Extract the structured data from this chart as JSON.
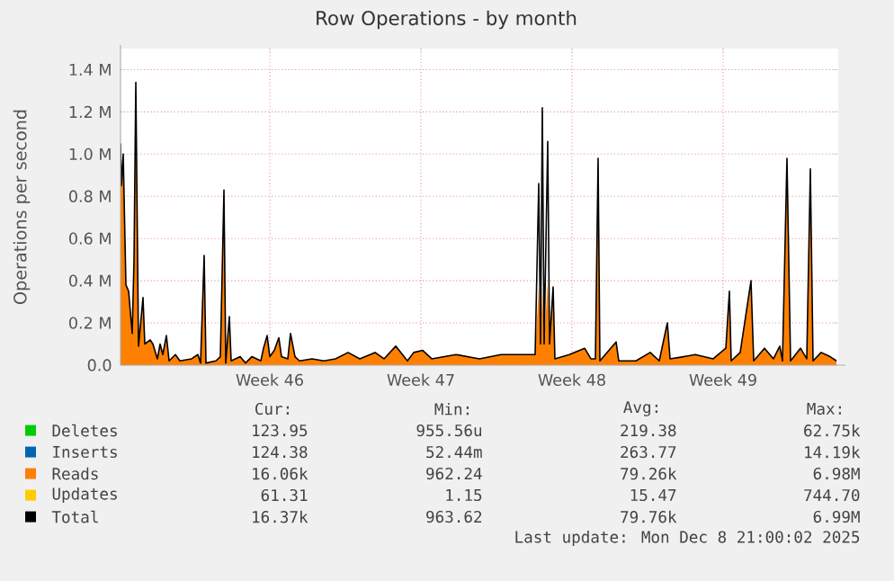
{
  "chart_data": {
    "type": "area",
    "title": "Row Operations - by month",
    "ylabel": "Operations per second",
    "x": [
      "2025-11-05T15:00",
      "2025-11-05T16:00",
      "2025-11-05T18:00",
      "2025-11-05T21:00",
      "2025-11-06T00:00",
      "2025-11-06T04:00",
      "2025-11-06T06:00",
      "2025-11-06T08:00",
      "2025-11-06T11:00",
      "2025-11-06T16:00",
      "2025-11-06T18:00",
      "2025-11-07T00:00",
      "2025-11-07T03:00",
      "2025-11-07T08:00",
      "2025-11-07T11:00",
      "2025-11-07T14:00",
      "2025-11-07T18:00",
      "2025-11-07T21:00",
      "2025-11-08T04:00",
      "2025-11-08T09:00",
      "2025-11-08T22:00",
      "2025-11-09T05:00",
      "2025-11-09T08:00",
      "2025-11-09T12:00",
      "2025-11-09T14:00",
      "2025-11-10T01:00",
      "2025-11-10T06:00",
      "2025-11-10T10:00",
      "2025-11-10T12:00",
      "2025-11-10T16:00",
      "2025-11-10T18:00",
      "2025-11-11T04:00",
      "2025-11-11T10:00",
      "2025-11-11T17:00",
      "2025-11-12T03:00",
      "2025-11-12T06:00",
      "2025-11-12T10:00",
      "2025-11-12T13:00",
      "2025-11-12T18:00",
      "2025-11-12T23:00",
      "2025-11-13T02:00",
      "2025-11-13T09:00",
      "2025-11-13T12:00",
      "2025-11-13T17:00",
      "2025-11-13T22:00",
      "2025-11-14T12:00",
      "2025-11-15T01:00",
      "2025-11-15T14:00",
      "2025-11-16T04:00",
      "2025-11-16T17:00",
      "2025-11-17T10:00",
      "2025-11-17T20:00",
      "2025-11-18T09:00",
      "2025-11-18T22:00",
      "2025-11-19T05:00",
      "2025-11-19T15:00",
      "2025-11-20T01:00",
      "2025-11-21T04:00",
      "2025-11-22T06:00",
      "2025-11-23T06:00",
      "2025-11-24T05:00",
      "2025-11-24T20:00",
      "2025-11-25T00:00",
      "2025-11-25T02:00",
      "2025-11-25T04:00",
      "2025-11-25T06:00",
      "2025-11-25T10:00",
      "2025-11-25T12:00",
      "2025-11-25T16:00",
      "2025-11-25T18:00",
      "2025-11-26T10:00",
      "2025-11-27T03:00",
      "2025-11-27T10:00",
      "2025-11-27T15:00",
      "2025-11-27T18:00",
      "2025-11-27T20:00",
      "2025-11-28T14:00",
      "2025-11-28T17:00",
      "2025-11-29T12:00",
      "2025-11-30T04:00",
      "2025-11-30T14:00",
      "2025-11-30T23:00",
      "2025-12-01T02:00",
      "2025-12-01T17:00",
      "2025-12-02T06:00",
      "2025-12-03T02:00",
      "2025-12-03T16:00",
      "2025-12-03T20:00",
      "2025-12-03T22:00",
      "2025-12-04T08:00",
      "2025-12-04T20:00",
      "2025-12-04T23:00",
      "2025-12-05T11:00",
      "2025-12-05T21:00",
      "2025-12-06T04:00",
      "2025-12-06T07:00",
      "2025-12-06T12:00",
      "2025-12-06T16:00",
      "2025-12-07T03:00",
      "2025-12-07T10:00",
      "2025-12-07T14:00",
      "2025-12-07T17:00",
      "2025-12-08T02:00",
      "2025-12-08T12:00",
      "2025-12-08T19:00"
    ],
    "xlim": [
      "2025-11-05T15:00",
      "2025-12-08T21:00"
    ],
    "xticks": [
      {
        "value": "2025-11-12T13:00",
        "label": "Week 46"
      },
      {
        "value": "2025-11-19T13:00",
        "label": "Week 47"
      },
      {
        "value": "2025-11-26T13:00",
        "label": "Week 48"
      },
      {
        "value": "2025-12-03T13:00",
        "label": "Week 49"
      }
    ],
    "ylim": [
      0,
      1500000
    ],
    "yticks": [
      {
        "value": 0,
        "label": "0.0"
      },
      {
        "value": 200000,
        "label": "0.2 M"
      },
      {
        "value": 400000,
        "label": "0.4 M"
      },
      {
        "value": 600000,
        "label": "0.6 M"
      },
      {
        "value": 800000,
        "label": "0.8 M"
      },
      {
        "value": 1000000,
        "label": "1.0 M"
      },
      {
        "value": 1200000,
        "label": "1.2 M"
      },
      {
        "value": 1400000,
        "label": "1.4 M"
      }
    ],
    "grid": true,
    "legend": "bottom",
    "marker": "none",
    "series": [
      {
        "name": "Deletes",
        "color": "#00cc00",
        "values": [
          null,
          null,
          null,
          null,
          null,
          null,
          null,
          null,
          null,
          null,
          null,
          null,
          null,
          null,
          null,
          null,
          null,
          null,
          null,
          null,
          null,
          null,
          null,
          null,
          null,
          null,
          null,
          null,
          null,
          null,
          null,
          null,
          null,
          null,
          null,
          null,
          null,
          null,
          null,
          null,
          null,
          null,
          null,
          null,
          null,
          null,
          null,
          null,
          null,
          null,
          null,
          null,
          null,
          null,
          null,
          null,
          null,
          null,
          null,
          null,
          null,
          null,
          null,
          null,
          null,
          null,
          null,
          null,
          null,
          null,
          null,
          null,
          null,
          null,
          null,
          null,
          null,
          null,
          null,
          null,
          null,
          null,
          null,
          null,
          null,
          null,
          null,
          null,
          null,
          null,
          null,
          null,
          null,
          null,
          null,
          null,
          null,
          null,
          null,
          null,
          null,
          null,
          null,
          null,
          null
        ]
      },
      {
        "name": "Inserts",
        "color": "#0066b3",
        "values": [
          null,
          null,
          null,
          null,
          null,
          null,
          null,
          null,
          null,
          null,
          null,
          null,
          null,
          null,
          null,
          null,
          null,
          null,
          null,
          null,
          null,
          null,
          null,
          null,
          null,
          null,
          null,
          null,
          null,
          null,
          null,
          null,
          null,
          null,
          null,
          null,
          null,
          null,
          null,
          null,
          null,
          null,
          null,
          null,
          null,
          null,
          null,
          null,
          null,
          null,
          null,
          null,
          null,
          null,
          null,
          null,
          null,
          null,
          null,
          null,
          null,
          null,
          null,
          null,
          null,
          null,
          null,
          null,
          null,
          null,
          null,
          null,
          null,
          null,
          null,
          null,
          null,
          null,
          null,
          null,
          null,
          null,
          null,
          null,
          null,
          null,
          null,
          null,
          null,
          null,
          null,
          null,
          null,
          null,
          null,
          null,
          null,
          null,
          null,
          null,
          null,
          null,
          null,
          null,
          null
        ]
      },
      {
        "name": "Reads",
        "color": "#ff8000",
        "values": [
          1050000.0,
          850000.0,
          1000000.0,
          380000.0,
          350000.0,
          150000.0,
          500000.0,
          1340000.0,
          90000.0,
          320000.0,
          100000.0,
          120000.0,
          100000.0,
          30000.0,
          100000.0,
          50000.0,
          140000.0,
          20000.0,
          50000.0,
          20000.0,
          30000.0,
          50000.0,
          10000.0,
          520000.0,
          10000.0,
          20000.0,
          40000.0,
          830000.0,
          10000.0,
          230000.0,
          20000.0,
          40000.0,
          10000.0,
          40000.0,
          20000.0,
          80000.0,
          140000.0,
          40000.0,
          70000.0,
          130000.0,
          40000.0,
          30000.0,
          150000.0,
          40000.0,
          20000.0,
          30000.0,
          20000.0,
          30000.0,
          60000.0,
          30000.0,
          60000.0,
          30000.0,
          90000.0,
          20000.0,
          60000.0,
          70000.0,
          30000.0,
          50000.0,
          30000.0,
          50000.0,
          50000.0,
          50000.0,
          370000.0,
          100000.0,
          370000.0,
          100000.0,
          400000.0,
          100000.0,
          370000.0,
          30000.0,
          50000.0,
          80000.0,
          30000.0,
          30000.0,
          980000.0,
          20000.0,
          110000.0,
          20000.0,
          20000.0,
          60000.0,
          20000.0,
          200000.0,
          30000.0,
          40000.0,
          50000.0,
          30000.0,
          80000.0,
          350000.0,
          20000.0,
          60000.0,
          400000.0,
          20000.0,
          80000.0,
          30000.0,
          90000.0,
          20000.0,
          980000.0,
          20000.0,
          80000.0,
          30000.0,
          930000.0,
          20000.0,
          60000.0,
          40000.0,
          20000.0
        ]
      },
      {
        "name": "Updates",
        "color": "#ffcc00",
        "values": [
          null,
          null,
          null,
          null,
          null,
          null,
          null,
          null,
          null,
          null,
          null,
          null,
          null,
          null,
          null,
          null,
          null,
          null,
          null,
          null,
          null,
          null,
          null,
          null,
          null,
          null,
          null,
          null,
          null,
          null,
          null,
          null,
          null,
          null,
          null,
          null,
          null,
          null,
          null,
          null,
          null,
          null,
          null,
          null,
          null,
          null,
          null,
          null,
          null,
          null,
          null,
          null,
          null,
          null,
          null,
          null,
          null,
          null,
          null,
          null,
          null,
          null,
          null,
          null,
          null,
          null,
          null,
          null,
          null,
          null,
          null,
          null,
          null,
          null,
          null,
          null,
          null,
          null,
          null,
          null,
          null,
          null,
          null,
          null,
          null,
          null,
          null,
          null,
          null,
          null,
          null,
          null,
          null,
          null,
          null,
          null,
          null,
          null,
          null,
          null,
          null,
          null,
          null,
          null,
          null
        ]
      },
      {
        "name": "Total",
        "color": "#000000",
        "type": "line",
        "values": [
          1050000.0,
          850000.0,
          1000000.0,
          380000.0,
          350000.0,
          150000.0,
          500000.0,
          1340000.0,
          90000.0,
          320000.0,
          100000.0,
          120000.0,
          100000.0,
          30000.0,
          100000.0,
          50000.0,
          140000.0,
          20000.0,
          50000.0,
          20000.0,
          30000.0,
          50000.0,
          10000.0,
          520000.0,
          10000.0,
          20000.0,
          40000.0,
          830000.0,
          10000.0,
          230000.0,
          20000.0,
          40000.0,
          10000.0,
          40000.0,
          20000.0,
          80000.0,
          140000.0,
          40000.0,
          70000.0,
          130000.0,
          40000.0,
          30000.0,
          150000.0,
          40000.0,
          20000.0,
          30000.0,
          20000.0,
          30000.0,
          60000.0,
          30000.0,
          60000.0,
          30000.0,
          90000.0,
          20000.0,
          60000.0,
          70000.0,
          30000.0,
          50000.0,
          30000.0,
          50000.0,
          50000.0,
          50000.0,
          860000.0,
          100000.0,
          1220000.0,
          100000.0,
          1060000.0,
          100000.0,
          370000.0,
          30000.0,
          50000.0,
          80000.0,
          30000.0,
          30000.0,
          980000.0,
          20000.0,
          110000.0,
          20000.0,
          20000.0,
          60000.0,
          20000.0,
          200000.0,
          30000.0,
          40000.0,
          50000.0,
          30000.0,
          80000.0,
          350000.0,
          20000.0,
          60000.0,
          400000.0,
          20000.0,
          80000.0,
          30000.0,
          90000.0,
          20000.0,
          980000.0,
          20000.0,
          80000.0,
          30000.0,
          930000.0,
          20000.0,
          60000.0,
          40000.0,
          20000.0
        ]
      }
    ],
    "annotations": [
      "Cur:",
      "Min:",
      "Avg:",
      "Max:",
      "123.95",
      "955.56u",
      "219.38",
      "62.75k",
      "124.38",
      "52.44m",
      "263.77",
      "14.19k",
      "16.06k",
      "962.24",
      "79.26k",
      "6.98M",
      "61.31",
      "1.15",
      "15.47",
      "744.70",
      "16.37k",
      "963.62",
      "79.76k",
      "6.99M",
      "Last update: Mon Dec  8 21:00:02 2025"
    ]
  }
}
